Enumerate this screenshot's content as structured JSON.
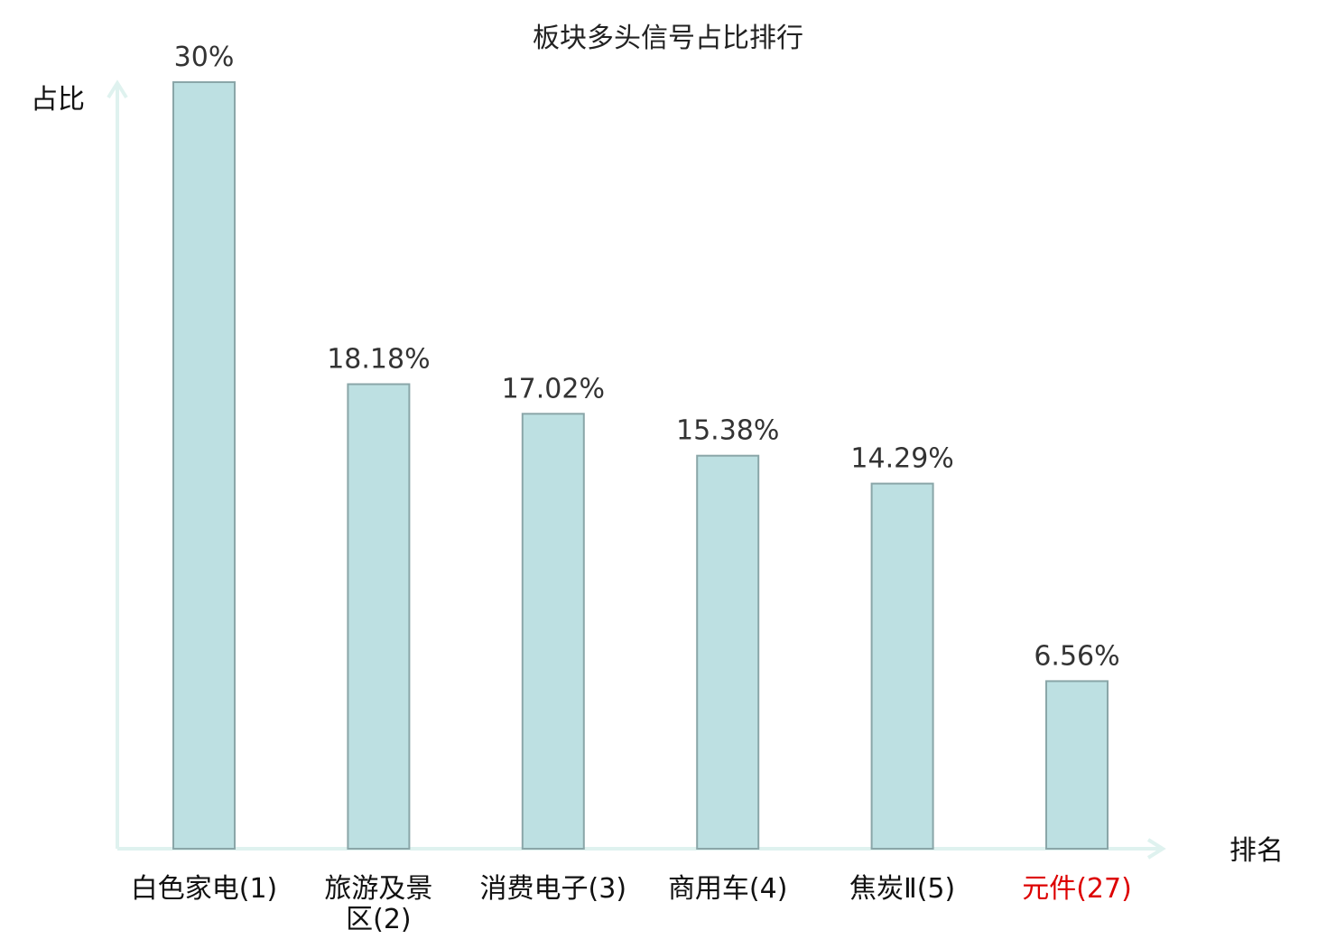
{
  "chart_data": {
    "type": "bar",
    "title": "板块多头信号占比排行",
    "xlabel": "排名",
    "ylabel": "占比",
    "ylim": [
      0,
      30
    ],
    "grid": false,
    "legend": "none",
    "categories": [
      "白色家电(1)",
      "旅游及景区(2)",
      "消费电子(3)",
      "商用车(4)",
      "焦炭Ⅱ(5)",
      "元件(27)"
    ],
    "category_lines": [
      [
        "白色家电(1)"
      ],
      [
        "旅游及景",
        "区(2)"
      ],
      [
        "消费电子(3)"
      ],
      [
        "商用车(4)"
      ],
      [
        "焦炭Ⅱ(5)"
      ],
      [
        "元件(27)"
      ]
    ],
    "category_colors": [
      "#111111",
      "#111111",
      "#111111",
      "#111111",
      "#111111",
      "#dd0000"
    ],
    "values": [
      30,
      18.18,
      17.02,
      15.38,
      14.29,
      6.56
    ],
    "data_labels": [
      "30%",
      "18.18%",
      "17.02%",
      "15.38%",
      "14.29%",
      "6.56%"
    ],
    "colors": {
      "bar_fill": "#bde0e2",
      "bar_stroke": "#8aa6a8",
      "axis": "#dff2ef",
      "highlight": "#dd0000"
    }
  }
}
